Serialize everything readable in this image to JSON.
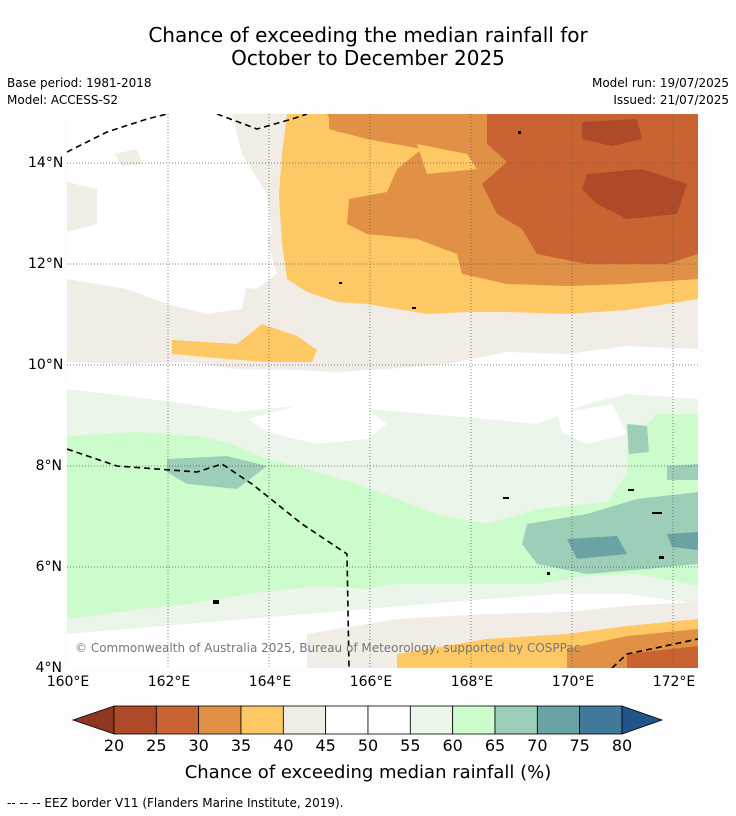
{
  "title": {
    "line1": "Chance of exceeding the median rainfall for",
    "line2": "October to December 2025"
  },
  "meta": {
    "base_period": "Base period: 1981-2018",
    "model": "Model: ACCESS-S2",
    "model_run": "Model run: 19/07/2025",
    "issued": "Issued: 21/07/2025"
  },
  "map": {
    "lat_labels": [
      "14°N",
      "12°N",
      "10°N",
      "8°N",
      "6°N",
      "4°N"
    ],
    "lon_labels": [
      "160°E",
      "162°E",
      "164°E",
      "166°E",
      "168°E",
      "170°E",
      "172°E"
    ],
    "copyright": "© Commonwealth of Australia 2025, Bureau of Meteorology, supported by COSPPac"
  },
  "colorbar": {
    "ticks": [
      "20",
      "25",
      "30",
      "35",
      "40",
      "45",
      "50",
      "55",
      "60",
      "65",
      "70",
      "75",
      "80"
    ],
    "colors": [
      "#ae4a27",
      "#c96432",
      "#e09146",
      "#fec964",
      "#f1ece6",
      "#ffffff",
      "#ffffff",
      "#ebf5ea",
      "#ccfccc",
      "#9dceb8",
      "#6aa3a3",
      "#427a9c"
    ],
    "under_color": "#8f3623",
    "over_color": "#21558a",
    "title": "Chance of exceeding median rainfall (%)"
  },
  "footnote": "--  --  -- EEZ border V11 (Flanders Marine Institute, 2019)."
}
